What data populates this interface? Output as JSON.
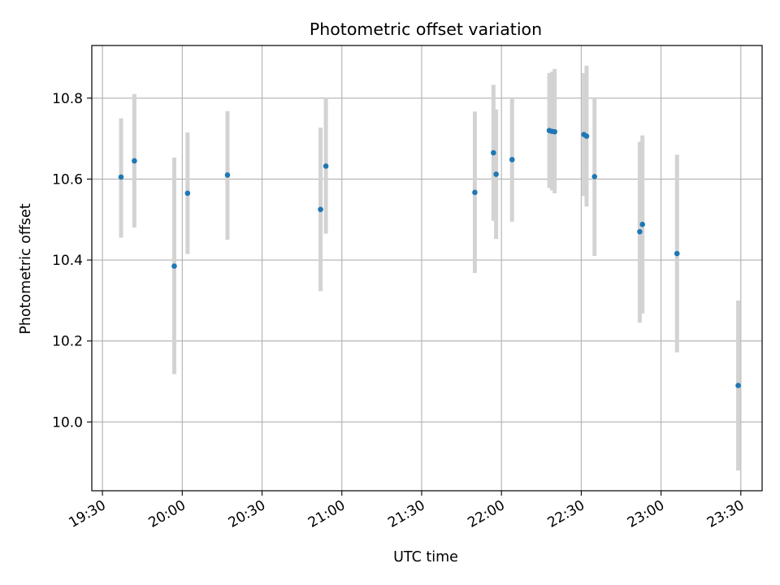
{
  "chart_data": {
    "type": "scatter",
    "title": "Photometric offset variation",
    "xlabel": "UTC time",
    "ylabel": "Photometric offset",
    "x_axis_kind": "time",
    "xlim": [
      "19:26",
      "23:38"
    ],
    "ylim": [
      9.83,
      10.93
    ],
    "xticks": [
      "19:30",
      "20:00",
      "20:30",
      "21:00",
      "21:30",
      "22:00",
      "22:30",
      "23:00",
      "23:30"
    ],
    "yticks": [
      10.0,
      10.2,
      10.4,
      10.6,
      10.8
    ],
    "ytick_labels": [
      "10.0",
      "10.2",
      "10.4",
      "10.6",
      "10.8"
    ],
    "grid": true,
    "point_color": "#1f77b4",
    "errorbar_color": "#d3d3d3",
    "points": [
      {
        "x": "19:37",
        "y": 10.605,
        "lo": 10.455,
        "hi": 10.75
      },
      {
        "x": "19:42",
        "y": 10.645,
        "lo": 10.48,
        "hi": 10.81
      },
      {
        "x": "19:57",
        "y": 10.385,
        "lo": 10.118,
        "hi": 10.653
      },
      {
        "x": "20:02",
        "y": 10.565,
        "lo": 10.415,
        "hi": 10.715
      },
      {
        "x": "20:17",
        "y": 10.61,
        "lo": 10.45,
        "hi": 10.768
      },
      {
        "x": "20:52",
        "y": 10.525,
        "lo": 10.323,
        "hi": 10.727
      },
      {
        "x": "20:54",
        "y": 10.632,
        "lo": 10.465,
        "hi": 10.8
      },
      {
        "x": "21:50",
        "y": 10.567,
        "lo": 10.368,
        "hi": 10.767
      },
      {
        "x": "21:57",
        "y": 10.665,
        "lo": 10.497,
        "hi": 10.833
      },
      {
        "x": "21:58",
        "y": 10.612,
        "lo": 10.452,
        "hi": 10.772
      },
      {
        "x": "22:04",
        "y": 10.648,
        "lo": 10.495,
        "hi": 10.8
      },
      {
        "x": "22:18",
        "y": 10.72,
        "lo": 10.578,
        "hi": 10.862
      },
      {
        "x": "22:19",
        "y": 10.718,
        "lo": 10.572,
        "hi": 10.865
      },
      {
        "x": "22:20",
        "y": 10.717,
        "lo": 10.565,
        "hi": 10.872
      },
      {
        "x": "22:31",
        "y": 10.71,
        "lo": 10.558,
        "hi": 10.862
      },
      {
        "x": "22:32",
        "y": 10.706,
        "lo": 10.532,
        "hi": 10.88
      },
      {
        "x": "22:35",
        "y": 10.606,
        "lo": 10.41,
        "hi": 10.8
      },
      {
        "x": "22:52",
        "y": 10.47,
        "lo": 10.245,
        "hi": 10.692
      },
      {
        "x": "22:53",
        "y": 10.488,
        "lo": 10.268,
        "hi": 10.708
      },
      {
        "x": "23:06",
        "y": 10.416,
        "lo": 10.172,
        "hi": 10.66
      },
      {
        "x": "23:29",
        "y": 10.09,
        "lo": 9.88,
        "hi": 10.3
      }
    ]
  }
}
